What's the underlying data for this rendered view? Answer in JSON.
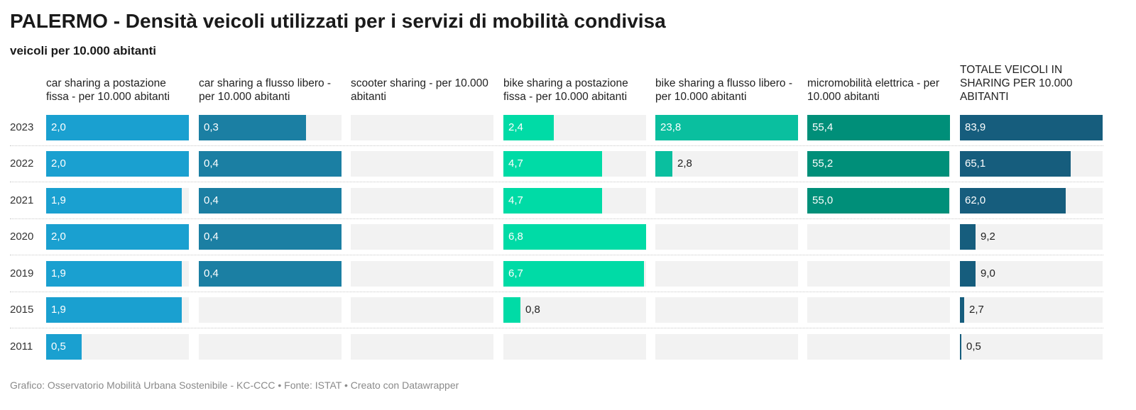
{
  "title": "PALERMO - Densità veicoli utilizzati per i servizi di mobilità condivisa",
  "subtitle": "veicoli per 10.000 abitanti",
  "footer": "Grafico: Osservatorio Mobilità Urbana Sostenibile - KC-CCC • Fonte: ISTAT • Creato con Datawrapper",
  "chart_data": {
    "type": "bar",
    "layout": "split-bars",
    "categories": [
      "2023",
      "2022",
      "2021",
      "2020",
      "2019",
      "2015",
      "2011"
    ],
    "series": [
      {
        "name": "car sharing a postazione fissa - per 10.000 abitanti",
        "color": "#1aa0d0",
        "max": 2.0,
        "values": [
          2.0,
          2.0,
          1.9,
          2.0,
          1.9,
          1.9,
          0.5
        ],
        "labels": [
          "2,0",
          "2,0",
          "1,9",
          "2,0",
          "1,9",
          "1,9",
          "0,5"
        ]
      },
      {
        "name": "car sharing a flusso libero - per 10.000 abitanti",
        "color": "#1b7fa3",
        "max": 0.4,
        "values": [
          0.3,
          0.4,
          0.4,
          0.4,
          0.4,
          null,
          null
        ],
        "labels": [
          "0,3",
          "0,4",
          "0,4",
          "0,4",
          "0,4",
          "",
          ""
        ]
      },
      {
        "name": "scooter sharing - per 10.000 abitanti",
        "color": "#2a8fb8",
        "max": 1,
        "values": [
          null,
          null,
          null,
          null,
          null,
          null,
          null
        ],
        "labels": [
          "",
          "",
          "",
          "",
          "",
          "",
          ""
        ]
      },
      {
        "name": "bike sharing a postazione fissa - per 10.000 abitanti",
        "color": "#00dba6",
        "max": 6.8,
        "values": [
          2.4,
          4.7,
          4.7,
          6.8,
          6.7,
          0.8,
          null
        ],
        "labels": [
          "2,4",
          "4,7",
          "4,7",
          "6,8",
          "6,7",
          "0,8",
          ""
        ]
      },
      {
        "name": "bike sharing a flusso libero - per 10.000 abitanti",
        "color": "#0abf9f",
        "max": 23.8,
        "values": [
          23.8,
          2.8,
          null,
          null,
          null,
          null,
          null
        ],
        "labels": [
          "23,8",
          "2,8",
          "",
          "",
          "",
          "",
          ""
        ]
      },
      {
        "name": "micromobilità elettrica - per 10.000 abitanti",
        "color": "#008f79",
        "max": 55.4,
        "values": [
          55.4,
          55.2,
          55.0,
          null,
          null,
          null,
          null
        ],
        "labels": [
          "55,4",
          "55,2",
          "55,0",
          "",
          "",
          "",
          ""
        ]
      },
      {
        "name": "TOTALE VEICOLI IN SHARING PER 10.000 ABITANTI",
        "color": "#165d7d",
        "max": 83.9,
        "values": [
          83.9,
          65.1,
          62.0,
          9.2,
          9.0,
          2.7,
          0.5
        ],
        "labels": [
          "83,9",
          "65,1",
          "62,0",
          "9,2",
          "9,0",
          "2,7",
          "0,5"
        ]
      }
    ]
  }
}
